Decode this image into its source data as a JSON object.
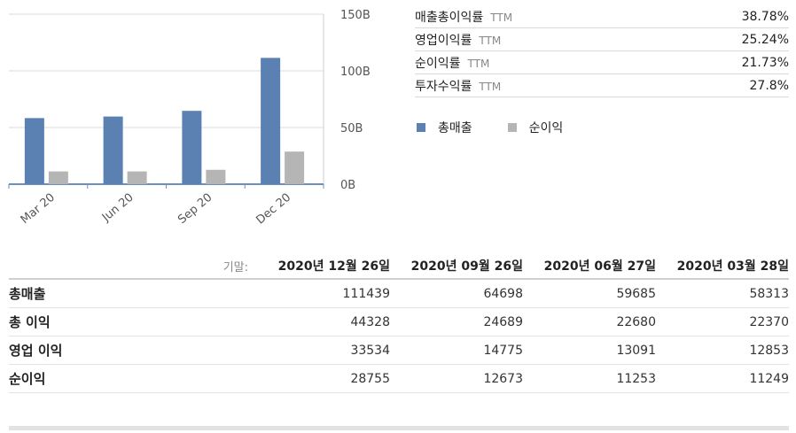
{
  "chart_data": {
    "type": "bar",
    "categories": [
      "Mar 20",
      "Jun 20",
      "Sep 20",
      "Dec 20"
    ],
    "series": [
      {
        "name": "총매출",
        "values": [
          58.313,
          59.685,
          64.698,
          111.439
        ]
      },
      {
        "name": "순이익",
        "values": [
          11.249,
          11.253,
          12.673,
          28.755
        ]
      }
    ],
    "y_ticks": [
      "150B",
      "100B",
      "50B",
      "0B"
    ],
    "y_tick_values": [
      150,
      100,
      50,
      0
    ],
    "ylim": [
      0,
      150
    ],
    "colors": [
      "#5b80b2",
      "#b5b5b5"
    ],
    "grid": true
  },
  "ratios": [
    {
      "name": "매출총이익률",
      "ttm": "TTM",
      "value": "38.78%"
    },
    {
      "name": "영업이익률",
      "ttm": "TTM",
      "value": "25.24%"
    },
    {
      "name": "순이익률",
      "ttm": "TTM",
      "value": "21.73%"
    },
    {
      "name": "투자수익률",
      "ttm": "TTM",
      "value": "27.8%"
    }
  ],
  "legend": [
    {
      "label": "총매출",
      "color": "#5b80b2"
    },
    {
      "label": "순이익",
      "color": "#b5b5b5"
    }
  ],
  "table": {
    "basis_label": "기말:",
    "dates": [
      "2020년 12월 26일",
      "2020년 09월 26일",
      "2020년 06월 27일",
      "2020년 03월 28일"
    ],
    "rows": [
      {
        "label": "총매출",
        "values": [
          "111439",
          "64698",
          "59685",
          "58313"
        ]
      },
      {
        "label": "총 이익",
        "values": [
          "44328",
          "24689",
          "22680",
          "22370"
        ]
      },
      {
        "label": "영업 이익",
        "values": [
          "33534",
          "14775",
          "13091",
          "12853"
        ]
      },
      {
        "label": "순이익",
        "values": [
          "28755",
          "12673",
          "11253",
          "11249"
        ]
      }
    ]
  }
}
